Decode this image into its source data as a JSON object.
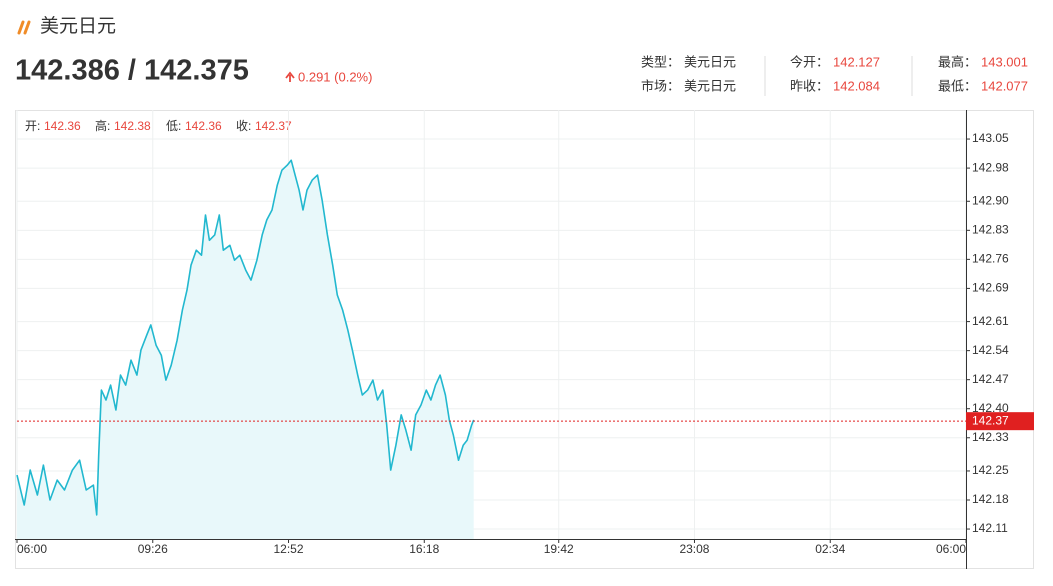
{
  "header": {
    "title": "美元日元",
    "price": "142.386 / 142.375",
    "change": "0.291 (0.2%)"
  },
  "info": {
    "rows": [
      [
        {
          "label": "类型：",
          "value": "美元日元"
        },
        {
          "label": "今开：",
          "value": 142.127
        },
        {
          "label": "最高：",
          "value": 143.001
        }
      ],
      [
        {
          "label": "市场：",
          "value": "美元日元"
        },
        {
          "label": "昨收：",
          "value": 142.084
        },
        {
          "label": "最低：",
          "value": 142.077
        }
      ]
    ]
  },
  "chart_data": {
    "type": "line",
    "ohlc": [
      {
        "label": "开:",
        "value": 142.36
      },
      {
        "label": "高:",
        "value": 142.38
      },
      {
        "label": "低:",
        "value": 142.36
      },
      {
        "label": "收:",
        "value": 142.37
      }
    ],
    "color": "#22b8cf",
    "fill_color": "#e8f8fa",
    "grid": true,
    "current_price": 142.37,
    "current_color": "#e02020",
    "xlim": [
      0,
      1440
    ],
    "xticks": [
      {
        "value": 0,
        "label": "06:00"
      },
      {
        "value": 206,
        "label": "09:26"
      },
      {
        "value": 412,
        "label": "12:52"
      },
      {
        "value": 618,
        "label": "16:18"
      },
      {
        "value": 822,
        "label": "19:42"
      },
      {
        "value": 1028,
        "label": "23:08"
      },
      {
        "value": 1234,
        "label": "02:34"
      },
      {
        "value": 1440,
        "label": "06:00"
      }
    ],
    "ylim": [
      142.086,
      143.12
    ],
    "yticks": [
      142.11,
      142.18,
      142.25,
      142.33,
      {
        "value": 142.4,
        "label": "142.40"
      },
      142.47,
      142.54,
      142.61,
      142.69,
      142.76,
      142.83,
      {
        "value": 142.9,
        "label": "142.90"
      },
      142.98,
      143.05
    ],
    "x": [
      0,
      11,
      20,
      31,
      40,
      50,
      61,
      72,
      84,
      95,
      105,
      116,
      121,
      124,
      128,
      135,
      142,
      150,
      157,
      165,
      173,
      182,
      188,
      197,
      203,
      211,
      219,
      226,
      234,
      243,
      251,
      258,
      264,
      272,
      280,
      286,
      292,
      300,
      307,
      313,
      323,
      330,
      338,
      347,
      355,
      364,
      372,
      379,
      387,
      395,
      402,
      410,
      416,
      422,
      428,
      434,
      440,
      448,
      456,
      463,
      471,
      479,
      486,
      494,
      502,
      509,
      517,
      524,
      532,
      540,
      547,
      555,
      561,
      567,
      575,
      583,
      590,
      598,
      605,
      613,
      621,
      628,
      635,
      642,
      650,
      656,
      662,
      670,
      677,
      683,
      690,
      693
    ],
    "values": [
      142.24,
      142.168,
      142.252,
      142.192,
      142.264,
      142.18,
      142.228,
      142.204,
      142.252,
      142.276,
      142.204,
      142.216,
      142.144,
      142.288,
      142.445,
      142.421,
      142.457,
      142.397,
      142.481,
      142.457,
      142.517,
      142.481,
      142.541,
      142.578,
      142.602,
      142.553,
      142.529,
      142.469,
      142.505,
      142.565,
      142.638,
      142.686,
      142.746,
      142.782,
      142.77,
      142.867,
      142.806,
      142.819,
      142.867,
      142.782,
      142.794,
      142.758,
      142.77,
      142.734,
      142.71,
      142.758,
      142.819,
      142.855,
      142.879,
      142.939,
      142.975,
      142.987,
      142.999,
      142.963,
      142.927,
      142.879,
      142.927,
      142.951,
      142.963,
      142.903,
      142.819,
      142.746,
      142.674,
      142.638,
      142.59,
      142.541,
      142.481,
      142.433,
      142.445,
      142.469,
      142.421,
      142.445,
      142.361,
      142.252,
      142.312,
      142.385,
      142.349,
      142.3,
      142.385,
      142.409,
      142.445,
      142.421,
      142.457,
      142.481,
      142.433,
      142.373,
      142.337,
      142.276,
      142.312,
      142.324,
      142.361,
      142.373
    ]
  }
}
